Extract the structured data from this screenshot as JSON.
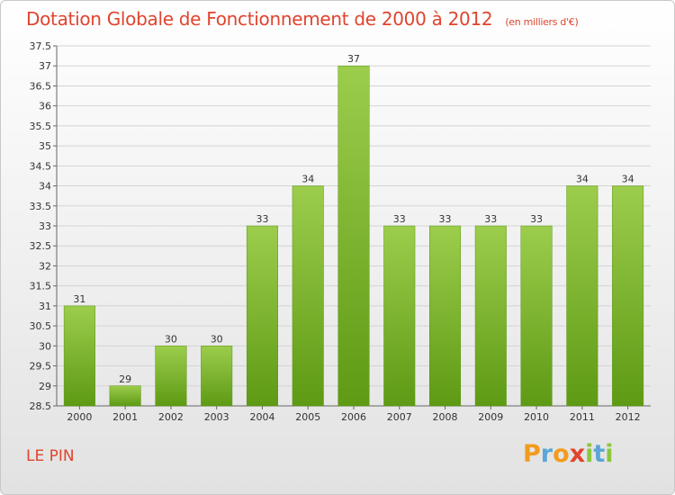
{
  "header": {
    "title": "Dotation Globale de Fonctionnement de 2000 à 2012",
    "unit": "(en milliers d'€)"
  },
  "footer": {
    "commune": "LE PIN"
  },
  "logo": {
    "letters": [
      "P",
      "r",
      "o",
      "x",
      "i",
      "t",
      "i"
    ],
    "colors": [
      "#f29b1e",
      "#5aa6d6",
      "#f29b1e",
      "#e0442e",
      "#8cc63f",
      "#5aa6d6",
      "#8cc63f"
    ]
  },
  "chart_data": {
    "type": "bar",
    "title": "Dotation Globale de Fonctionnement de 2000 à 2012",
    "subtitle": "(en milliers d'€)",
    "categories": [
      "2000",
      "2001",
      "2002",
      "2003",
      "2004",
      "2005",
      "2006",
      "2007",
      "2008",
      "2009",
      "2010",
      "2011",
      "2012"
    ],
    "values": [
      31,
      29,
      30,
      30,
      33,
      34,
      37,
      33,
      33,
      33,
      33,
      34,
      34
    ],
    "ylim": [
      28.5,
      37.5
    ],
    "ytick_step": 0.5,
    "yticks": [
      "28.5",
      "29",
      "29.5",
      "30",
      "30.5",
      "31",
      "31.5",
      "32",
      "32.5",
      "33",
      "33.5",
      "34",
      "34.5",
      "35",
      "35.5",
      "36",
      "36.5",
      "37",
      "37.5"
    ],
    "grid": true,
    "bar_color": "#7ab52a",
    "label_color": "#333333"
  }
}
